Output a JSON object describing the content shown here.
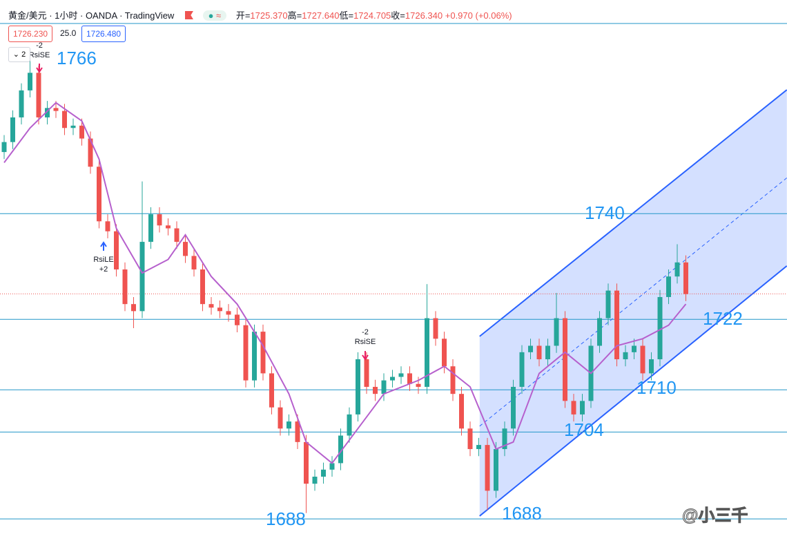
{
  "header": {
    "title": "黄金/美元 · 1小时 · OANDA · TradingView",
    "ohlc": [
      {
        "label": "开=",
        "value": "1725.370"
      },
      {
        "label": "高=",
        "value": "1727.640"
      },
      {
        "label": "低=",
        "value": "1724.705"
      },
      {
        "label": "收=",
        "value": "1726.340"
      }
    ],
    "change": "+0.970 (+0.06%)",
    "bid": "1726.230",
    "spread": "25.0",
    "ask": "1726.480",
    "indicator_count": "2"
  },
  "chart_data": {
    "type": "candlestick",
    "up_color": "#26a69a",
    "down_color": "#ef5350",
    "ylim": [
      1683.9,
      1776.4
    ],
    "open": [
      1750.5,
      1752.2,
      1756.4,
      1761,
      1764,
      1756.4,
      1758,
      1757.5,
      1754.6,
      1755,
      1752.8,
      1748,
      1738.7,
      1737,
      1730.5,
      1724.6,
      1723.4,
      1735.2,
      1739.9,
      1738,
      1737.5,
      1735.2,
      1732.8,
      1730.5,
      1724.6,
      1724,
      1723.4,
      1722.8,
      1721,
      1711.6,
      1719.9,
      1712.8,
      1707,
      1703.4,
      1704.6,
      1701.1,
      1694,
      1695.2,
      1696.4,
      1697.5,
      1702.2,
      1705.8,
      1715.2,
      1710.5,
      1709.3,
      1711.6,
      1712.2,
      1712.8,
      1711,
      1710.5,
      1722.2,
      1718.7,
      1714,
      1709.3,
      1703.4,
      1699.9,
      1700.6,
      1692.8,
      1699.9,
      1703.4,
      1710.5,
      1716.4,
      1717.5,
      1715.2,
      1717.5,
      1722.2,
      1708.1,
      1705.8,
      1708.1,
      1717.5,
      1722.2,
      1726.9,
      1715.2,
      1716.4,
      1717.5,
      1712.8,
      1715.2,
      1725.8,
      1729.3,
      1731.7
    ],
    "high": [
      1753.4,
      1757.6,
      1762.2,
      1767,
      1765.2,
      1759.2,
      1759.2,
      1758.7,
      1756.2,
      1756.2,
      1754,
      1749.2,
      1739.9,
      1738.2,
      1731.7,
      1725.8,
      1745.5,
      1741.1,
      1741.1,
      1739.2,
      1738.7,
      1736.4,
      1734,
      1731.7,
      1725.8,
      1725.2,
      1724.6,
      1724,
      1722.2,
      1721.1,
      1721.1,
      1714,
      1708.2,
      1705.8,
      1705.8,
      1702.3,
      1696.4,
      1697.6,
      1698.7,
      1703.4,
      1707,
      1716.4,
      1716.4,
      1711.7,
      1712.8,
      1713.4,
      1714,
      1714,
      1712.2,
      1728,
      1723.4,
      1719.9,
      1715.2,
      1710.5,
      1704.6,
      1701.8,
      1701.8,
      1701.1,
      1704.6,
      1711.7,
      1717.6,
      1718.7,
      1718.7,
      1718.7,
      1726.5,
      1723.4,
      1709.3,
      1709.3,
      1718.7,
      1723.4,
      1728.1,
      1728.1,
      1717.6,
      1718.7,
      1718.7,
      1716.4,
      1727,
      1730.5,
      1734.8,
      1732.9
    ],
    "low": [
      1749.3,
      1751,
      1755.2,
      1759.8,
      1755.2,
      1755.2,
      1756.3,
      1753.4,
      1753.4,
      1751.6,
      1746.8,
      1737.5,
      1735.8,
      1729.3,
      1723.4,
      1720.5,
      1722.2,
      1734,
      1736.8,
      1736.3,
      1734,
      1731.6,
      1729.3,
      1723.4,
      1722.8,
      1722.2,
      1721.6,
      1719.8,
      1710.4,
      1710.4,
      1711.6,
      1705.8,
      1702.2,
      1702.2,
      1699.9,
      1689,
      1692.8,
      1694,
      1695.2,
      1696.3,
      1701,
      1704.6,
      1709.3,
      1708.1,
      1708.1,
      1710.4,
      1711,
      1709.8,
      1709.3,
      1709.3,
      1717.5,
      1712.8,
      1708.1,
      1702.2,
      1698.7,
      1698.7,
      1689.5,
      1691.6,
      1698.7,
      1702.2,
      1709.3,
      1715.2,
      1714,
      1714,
      1716.3,
      1706.9,
      1704.6,
      1704.6,
      1706.9,
      1716.3,
      1721,
      1714,
      1714,
      1715.2,
      1711.6,
      1711.6,
      1714,
      1724.6,
      1728.1,
      1725.1
    ],
    "close": [
      1752.2,
      1756.4,
      1761,
      1764,
      1756.4,
      1758,
      1757.5,
      1754.6,
      1755,
      1752.8,
      1748,
      1738.7,
      1737,
      1730.5,
      1724.6,
      1723.4,
      1735.2,
      1739.9,
      1738,
      1737.5,
      1735.2,
      1732.8,
      1730.5,
      1724.6,
      1724,
      1723.4,
      1722.8,
      1721,
      1711.6,
      1719.9,
      1712.8,
      1707,
      1703.4,
      1704.6,
      1701.1,
      1694,
      1695.2,
      1696.4,
      1697.5,
      1702.2,
      1705.8,
      1715.2,
      1710.5,
      1709.3,
      1711.6,
      1712.2,
      1712.8,
      1711,
      1710.5,
      1722.2,
      1718.7,
      1714,
      1709.3,
      1703.4,
      1699.9,
      1700.6,
      1692.8,
      1699.9,
      1703.4,
      1710.5,
      1716.4,
      1717.5,
      1715.2,
      1717.5,
      1722.2,
      1708.1,
      1705.8,
      1708.1,
      1717.5,
      1722.2,
      1726.9,
      1715.2,
      1716.4,
      1717.5,
      1712.8,
      1715.2,
      1725.8,
      1729.3,
      1731.7,
      1726.3
    ],
    "ma": {
      "color": "#b660cd",
      "x": [
        0,
        3,
        6,
        9,
        11,
        13,
        16,
        19,
        21,
        24,
        27,
        30,
        33,
        35,
        38,
        41,
        44,
        48,
        51,
        54,
        57,
        59,
        62,
        65,
        68,
        71,
        74,
        77,
        79
      ],
      "values": [
        1748.7,
        1754.6,
        1758.9,
        1755.8,
        1749.3,
        1737.5,
        1729.9,
        1732.2,
        1736.4,
        1729.3,
        1724.6,
        1717.5,
        1709.3,
        1701.1,
        1697.5,
        1703.4,
        1709.3,
        1711.6,
        1714,
        1710.5,
        1699.9,
        1701.1,
        1712.8,
        1716.4,
        1712.8,
        1717.5,
        1718.7,
        1721,
        1724.6
      ]
    },
    "channel": {
      "color": "#2962ff",
      "x": [
        55.1,
        90.7
      ],
      "upper": [
        1719.1,
        1761.1
      ],
      "lower": [
        1688.5,
        1731.1
      ]
    },
    "levels": [
      1740,
      1722,
      1710,
      1702.8,
      1688
    ],
    "level_color": "#2196c8",
    "price_line": 1726.34,
    "annotations": [
      "1766",
      "1740",
      "1722",
      "1710",
      "1704",
      "1688",
      "1688"
    ],
    "signals": [
      {
        "count": "-2",
        "label": "RsiSE"
      },
      {
        "label": "RsiLE",
        "count": "+2"
      },
      {
        "count": "-2",
        "label": "RsiSE"
      }
    ]
  },
  "watermark": "@小三千"
}
